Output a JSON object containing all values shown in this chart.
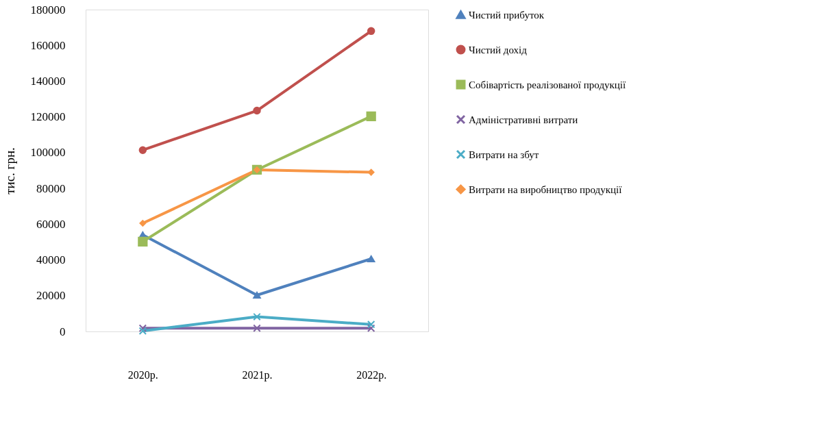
{
  "chart_data": {
    "type": "line",
    "ylabel": "тис. грн.",
    "categories": [
      "2020р.",
      "2021р.",
      "2022р."
    ],
    "ylim": [
      0,
      180000
    ],
    "yticks": [
      0,
      20000,
      40000,
      60000,
      80000,
      100000,
      120000,
      140000,
      160000,
      180000
    ],
    "grid": false,
    "legend": "right",
    "line_style": "solid",
    "series": [
      {
        "name": "Чистий прибуток",
        "color": "#4f81bd",
        "marker": "triangle",
        "values": [
          54000,
          20300,
          40600
        ]
      },
      {
        "name": "Чистий дохід",
        "color": "#c0504d",
        "marker": "circle",
        "values": [
          101400,
          123500,
          168000
        ]
      },
      {
        "name": "Собівартість реалізованої продукції",
        "color": "#9bbb59",
        "marker": "square",
        "values": [
          50200,
          90400,
          120300
        ]
      },
      {
        "name": "Адміністративні витрати",
        "color": "#8064a2",
        "marker": "cross",
        "values": [
          1800,
          1800,
          1800
        ]
      },
      {
        "name": "Витрати на збут",
        "color": "#4bacc6",
        "marker": "cross",
        "values": [
          300,
          8200,
          3900
        ]
      },
      {
        "name": "Витрати на виробництво продукції",
        "color": "#f79646",
        "marker": "diamond",
        "values": [
          60500,
          90400,
          89000
        ]
      }
    ]
  }
}
